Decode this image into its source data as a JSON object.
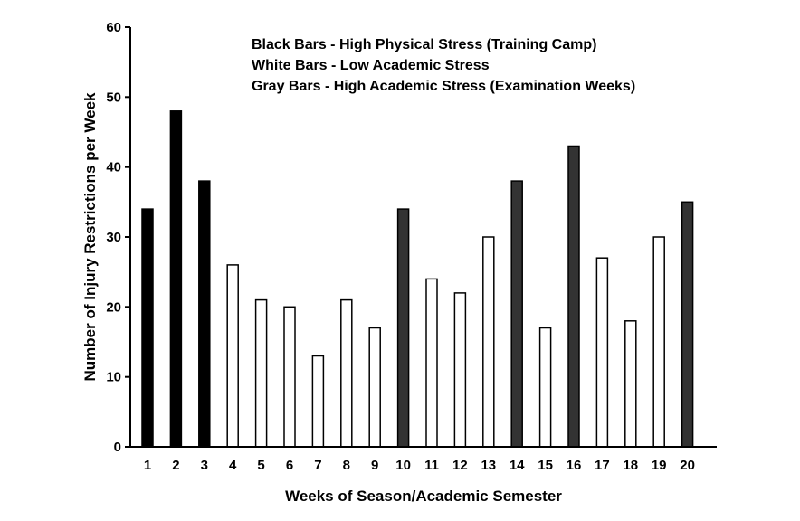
{
  "chart_data": {
    "type": "bar",
    "categories": [
      "1",
      "2",
      "3",
      "4",
      "5",
      "6",
      "7",
      "8",
      "9",
      "10",
      "11",
      "12",
      "13",
      "14",
      "15",
      "16",
      "17",
      "18",
      "19",
      "20"
    ],
    "values": [
      34,
      48,
      38,
      26,
      21,
      20,
      13,
      21,
      17,
      34,
      24,
      22,
      30,
      38,
      17,
      43,
      27,
      18,
      30,
      35
    ],
    "bar_type": [
      "black",
      "black",
      "black",
      "white",
      "white",
      "white",
      "white",
      "white",
      "white",
      "gray",
      "white",
      "white",
      "white",
      "gray",
      "white",
      "gray",
      "white",
      "white",
      "white",
      "gray"
    ],
    "colors": {
      "black": "#000000",
      "white": "#ffffff",
      "gray": "#333333",
      "outline": "#000000"
    },
    "xlabel": "Weeks of Season/Academic Semester",
    "ylabel": "Number of  Injury Restrictions per Week",
    "ylim": [
      0,
      60
    ],
    "yticks": [
      0,
      10,
      20,
      30,
      40,
      50,
      60
    ],
    "grid": false,
    "legend_position": "top-right",
    "annotations": [
      "Black Bars - High Physical Stress (Training Camp)",
      "White Bars - Low Academic Stress",
      "Gray Bars - High Academic Stress (Examination Weeks)"
    ]
  }
}
